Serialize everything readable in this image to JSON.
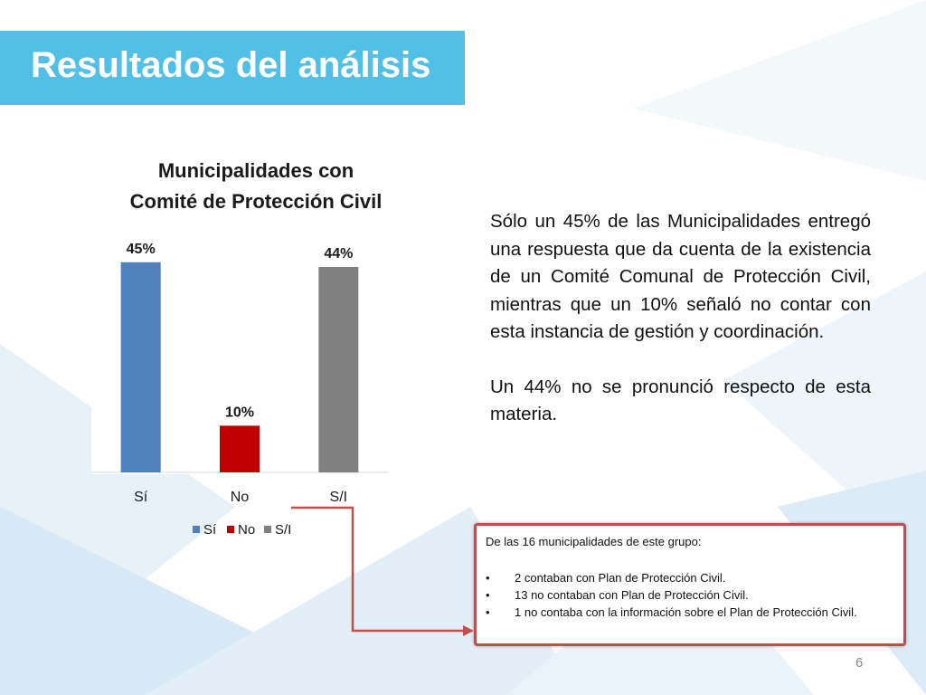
{
  "slide": {
    "title": "Resultados del análisis",
    "page_number": "6"
  },
  "text": {
    "paragraph1": "Sólo un 45% de las Municipalidades entregó una respuesta que da cuenta de la existencia de un Comité Comunal de Protección Civil, mientras que un 10% señaló no contar con esta instancia de gestión y coordinación.",
    "paragraph2": "Un 44% no se pronunció respecto de esta materia."
  },
  "note": {
    "intro": "De las 16 municipalidades de este grupo:",
    "items": [
      "2 contaban con Plan de Protección Civil.",
      "13 no contaban con Plan de Protección Civil.",
      "1 no contaba con la información sobre el Plan de Protección Civil."
    ]
  },
  "chart_data": {
    "type": "bar",
    "title": [
      "Municipalidades con",
      "Comité de Protección Civil"
    ],
    "categories": [
      "Sí",
      "No",
      "S/I"
    ],
    "values": [
      45,
      10,
      44
    ],
    "data_labels": [
      "45%",
      "10%",
      "44%"
    ],
    "colors": [
      "#4f81bd",
      "#c00000",
      "#808080"
    ],
    "ylim": [
      0,
      50
    ],
    "grid": false,
    "legend_position": "bottom",
    "legend": [
      "Sí",
      "No",
      "S/I"
    ],
    "xlabel": "",
    "ylabel": ""
  },
  "colors": {
    "title_bar": "#52c0e6",
    "note_border": "#c0504d",
    "arrow": "#c0504d"
  }
}
